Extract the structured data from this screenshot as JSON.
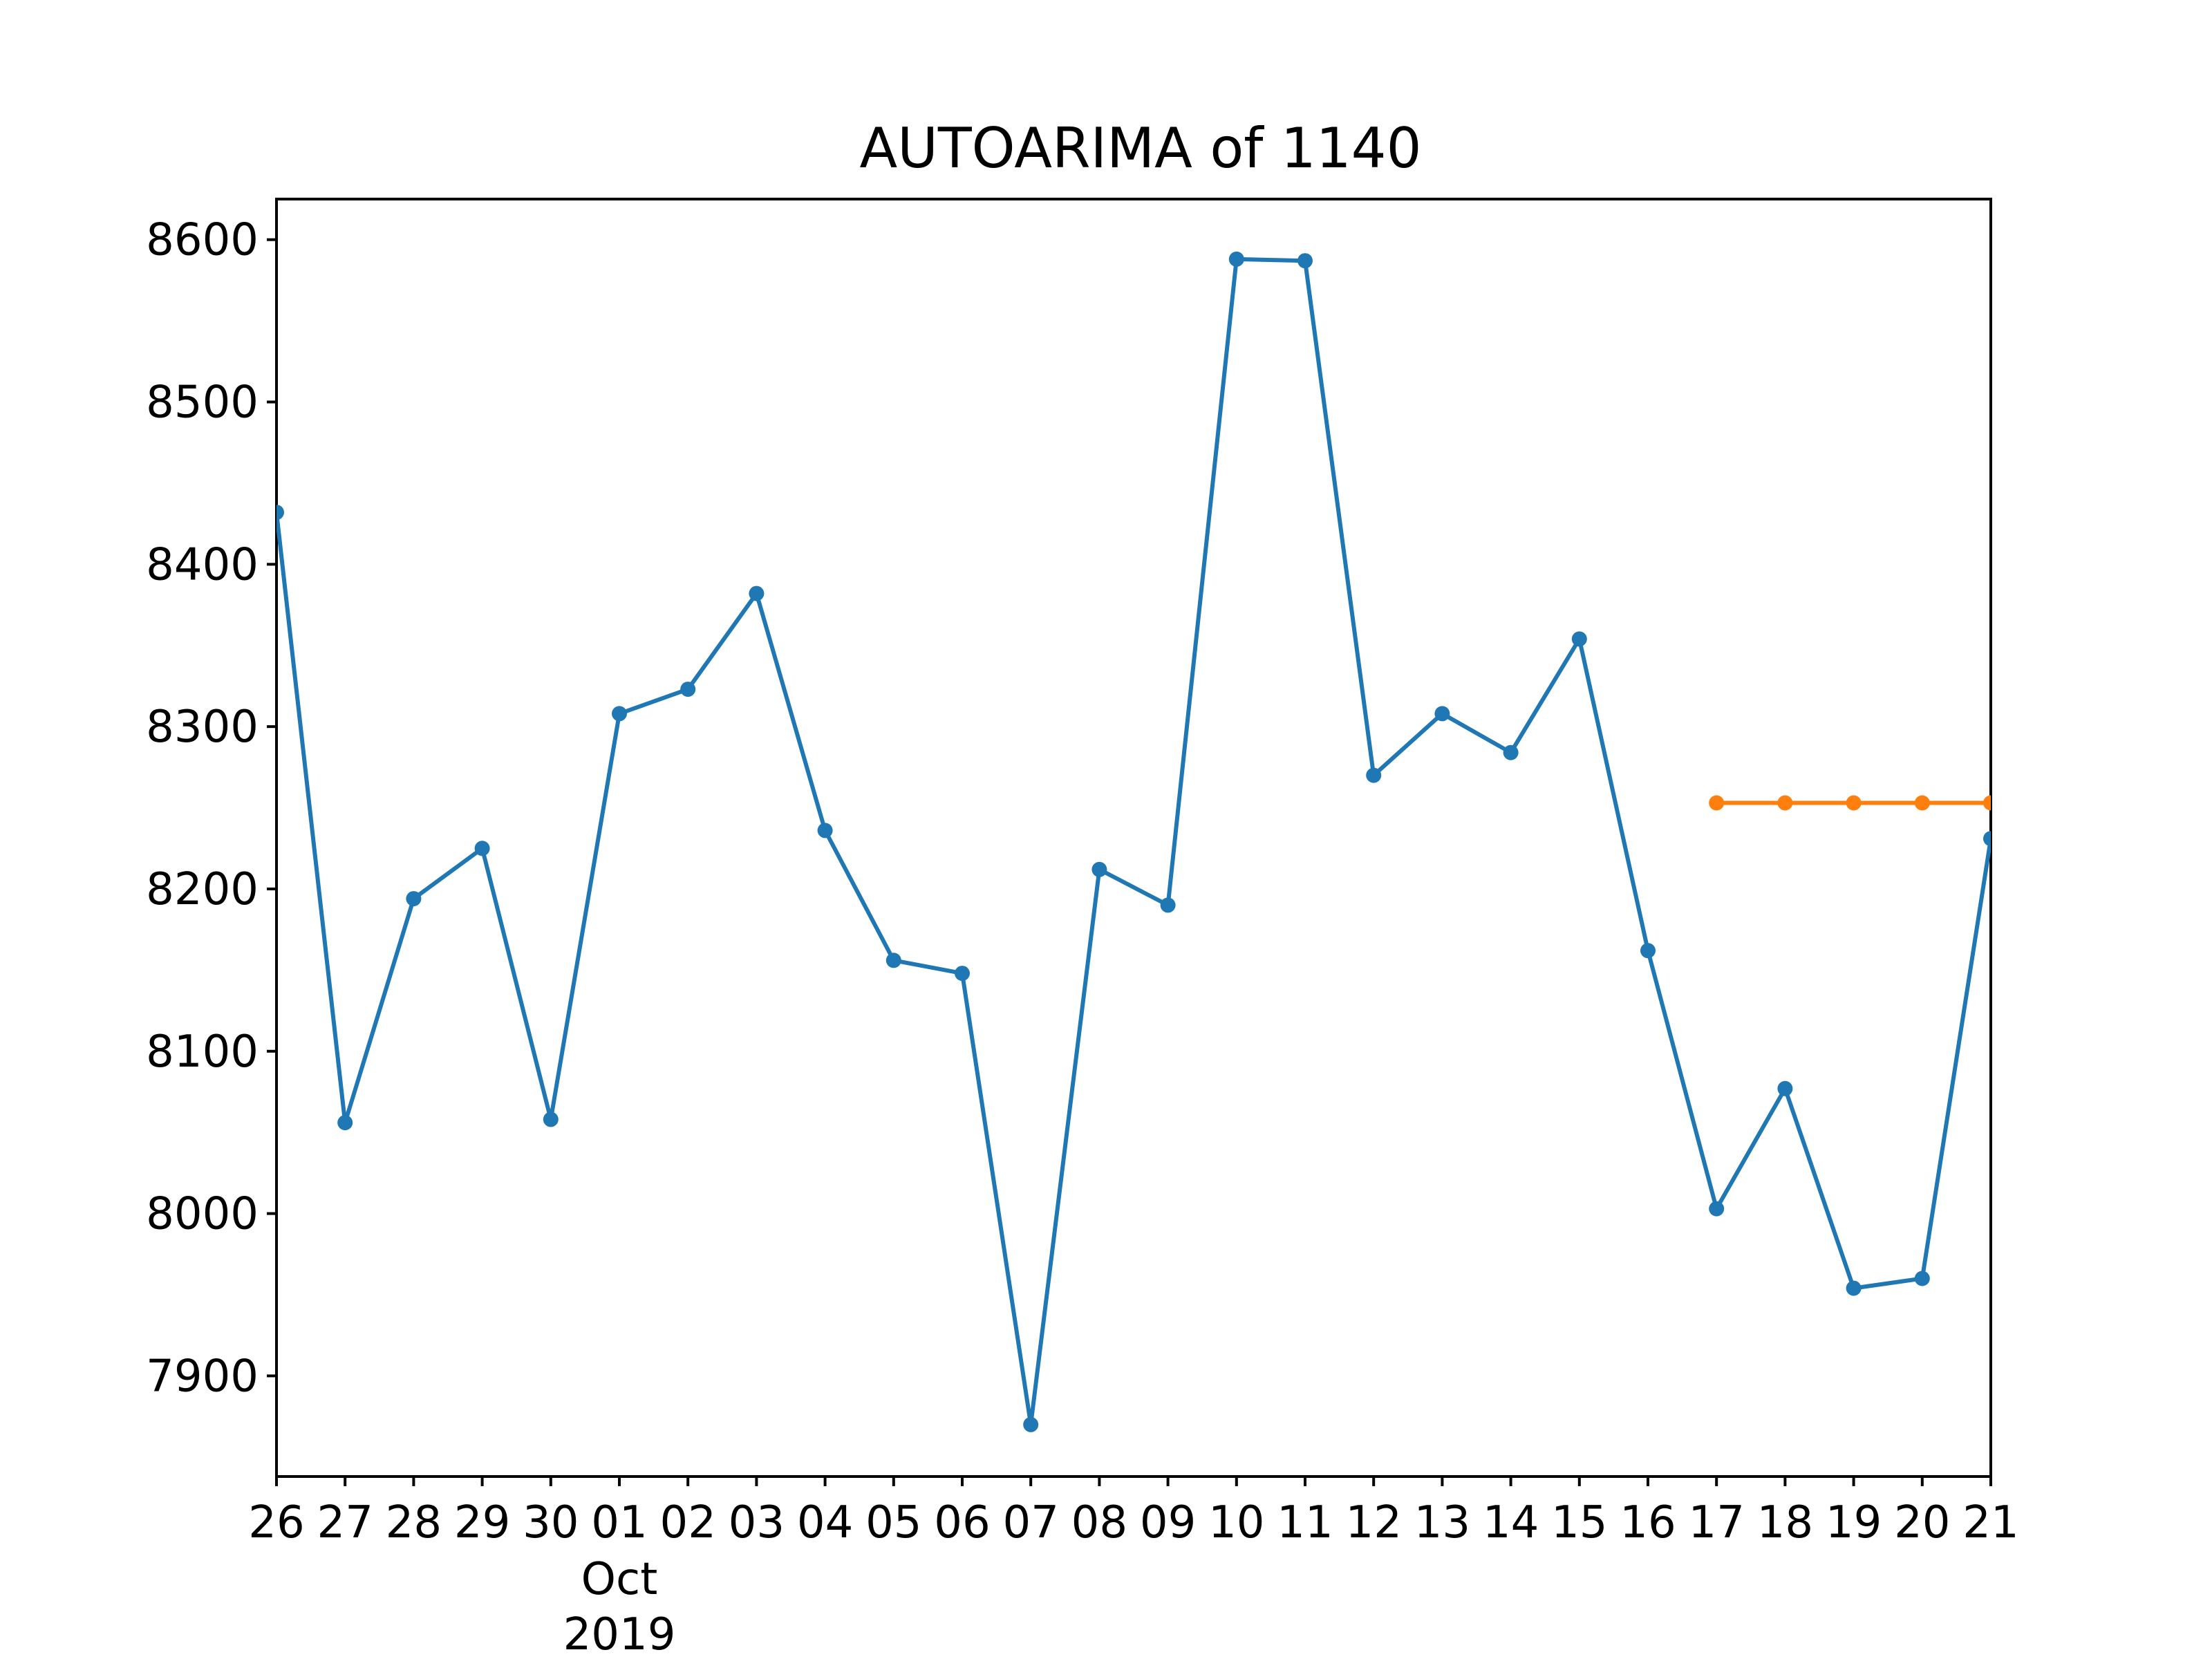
{
  "chart_data": {
    "type": "line",
    "title": "AUTOARIMA of 1140",
    "xlabel": "",
    "ylabel": "",
    "x_tick_labels": [
      "26",
      "27",
      "28",
      "29",
      "30",
      "01",
      "02",
      "03",
      "04",
      "05",
      "06",
      "07",
      "08",
      "09",
      "10",
      "11",
      "12",
      "13",
      "14",
      "15",
      "16",
      "17",
      "18",
      "19",
      "20",
      "21"
    ],
    "x_secondary_label": [
      "Oct",
      "2019"
    ],
    "x_secondary_label_at": "01",
    "y_ticks": [
      7900,
      8000,
      8100,
      8200,
      8300,
      8400,
      8500,
      8600
    ],
    "ylim": [
      7838,
      8625
    ],
    "xlim": [
      "2019-09-26",
      "2019-10-21"
    ],
    "grid": false,
    "legend": "none",
    "series": [
      {
        "color": "#1f77b4",
        "x": [
          "2019-09-26",
          "2019-09-27",
          "2019-09-28",
          "2019-09-29",
          "2019-09-30",
          "2019-10-01",
          "2019-10-02",
          "2019-10-03",
          "2019-10-04",
          "2019-10-05",
          "2019-10-06",
          "2019-10-07",
          "2019-10-08",
          "2019-10-09",
          "2019-10-10",
          "2019-10-11",
          "2019-10-12",
          "2019-10-13",
          "2019-10-14",
          "2019-10-15",
          "2019-10-16",
          "2019-10-17",
          "2019-10-18",
          "2019-10-19",
          "2019-10-20",
          "2019-10-21"
        ],
        "values": [
          8432,
          8056,
          8194,
          8225,
          8058,
          8308,
          8323,
          8382,
          8236,
          8156,
          8148,
          7870,
          8212,
          8190,
          8588,
          8587,
          8270,
          8308,
          8284,
          8354,
          8162,
          8003,
          8077,
          7954,
          7960,
          8231
        ]
      },
      {
        "color": "#ff7f0e",
        "x": [
          "2019-10-17",
          "2019-10-18",
          "2019-10-19",
          "2019-10-20",
          "2019-10-21"
        ],
        "values": [
          8253,
          8253,
          8253,
          8253,
          8253
        ]
      }
    ]
  }
}
